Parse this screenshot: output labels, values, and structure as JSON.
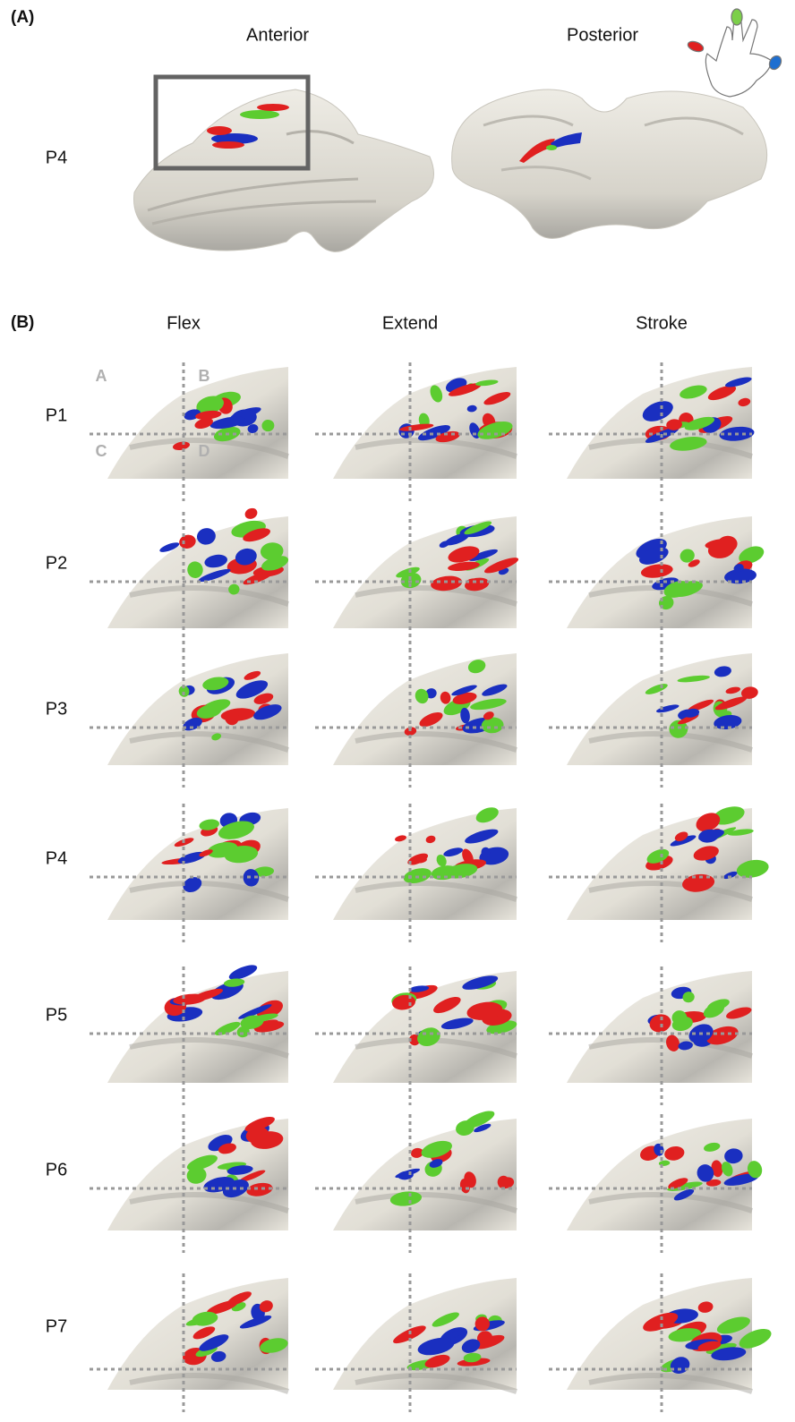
{
  "panel_a": {
    "label": "(A)",
    "views": [
      "Anterior",
      "Posterior"
    ],
    "row_label": "P4"
  },
  "panel_b": {
    "label": "(B)",
    "columns": [
      "Flex",
      "Extend",
      "Stroke"
    ],
    "rows": [
      "P1",
      "P2",
      "P3",
      "P4",
      "P5",
      "P6",
      "P7"
    ],
    "quadrants": [
      "A",
      "B",
      "C",
      "D"
    ]
  }
}
